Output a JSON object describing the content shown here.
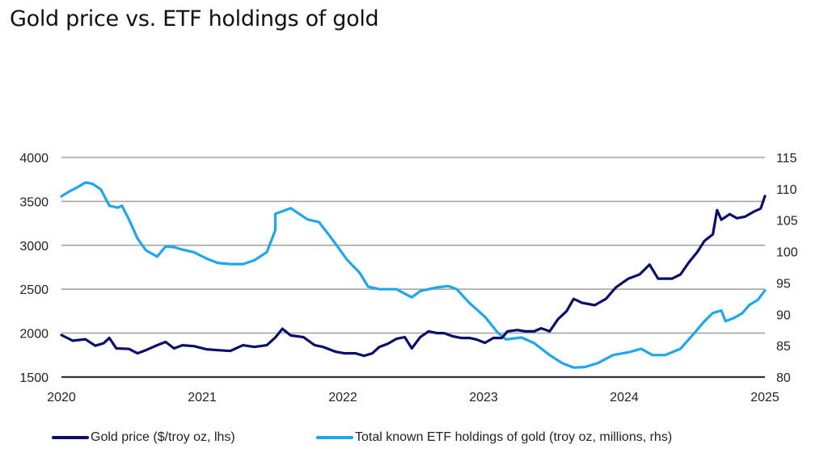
{
  "chart_data": {
    "type": "line",
    "title": "Gold price vs. ETF holdings of gold",
    "xlabel": "",
    "x_ticks": [
      "2020",
      "2021",
      "2022",
      "2023",
      "2024",
      "2025"
    ],
    "xlim": [
      2020,
      2025
    ],
    "y_left": {
      "label": "Gold price ($/troy oz, lhs)",
      "ylim": [
        1500,
        4000
      ],
      "ticks": [
        "4000",
        "3500",
        "3000",
        "2500",
        "2000",
        "1500"
      ]
    },
    "y_right": {
      "label": "Total known ETF holdings of gold (troy oz, millions, rhs)",
      "ylim": [
        80,
        115
      ],
      "ticks": [
        "115",
        "110",
        "105",
        "100",
        "95",
        "90",
        "85",
        "80"
      ]
    },
    "grid": true,
    "legend_position": "bottom",
    "series": [
      {
        "name": "Gold price ($/troy oz, lhs)",
        "axis": "left",
        "color": "#0b0f6b",
        "x": [
          2020.0,
          2020.08,
          2020.17,
          2020.24,
          2020.3,
          2020.34,
          2020.39,
          2020.48,
          2020.54,
          2020.6,
          2020.68,
          2020.74,
          2020.8,
          2020.86,
          2020.94,
          2021.03,
          2021.11,
          2021.2,
          2021.29,
          2021.37,
          2021.46,
          2021.52,
          2021.57,
          2021.63,
          2021.72,
          2021.8,
          2021.86,
          2021.95,
          2022.01,
          2022.09,
          2022.15,
          2022.21,
          2022.26,
          2022.32,
          2022.38,
          2022.44,
          2022.49,
          2022.55,
          2022.61,
          2022.67,
          2022.72,
          2022.78,
          2022.84,
          2022.9,
          2022.95,
          2023.01,
          2023.07,
          2023.13,
          2023.17,
          2023.24,
          2023.3,
          2023.36,
          2023.41,
          2023.47,
          2023.53,
          2023.59,
          2023.64,
          2023.7,
          2023.79,
          2023.87,
          2023.94,
          2024.03,
          2024.11,
          2024.18,
          2024.24,
          2024.29,
          2024.34,
          2024.4,
          2024.46,
          2024.52,
          2024.57,
          2024.63,
          2024.66,
          2024.69,
          2024.75,
          2024.8,
          2024.86,
          2024.92,
          2024.97,
          2025.0
        ],
        "values": [
          1978,
          1914,
          1930,
          1857,
          1885,
          1945,
          1826,
          1820,
          1770,
          1806,
          1862,
          1900,
          1826,
          1862,
          1852,
          1816,
          1806,
          1797,
          1862,
          1843,
          1862,
          1950,
          2050,
          1973,
          1954,
          1862,
          1843,
          1788,
          1770,
          1770,
          1742,
          1770,
          1843,
          1880,
          1935,
          1954,
          1826,
          1954,
          2020,
          2000,
          2000,
          1964,
          1945,
          1945,
          1927,
          1890,
          1945,
          1945,
          2020,
          2035,
          2020,
          2020,
          2055,
          2020,
          2160,
          2250,
          2390,
          2345,
          2318,
          2390,
          2520,
          2620,
          2668,
          2780,
          2620,
          2620,
          2620,
          2668,
          2806,
          2925,
          3050,
          3125,
          3400,
          3290,
          3355,
          3308,
          3326,
          3382,
          3418,
          3560
        ]
      },
      {
        "name": "Total known ETF holdings of gold (troy oz, millions, rhs)",
        "axis": "right",
        "color": "#1ea7ec",
        "x": [
          2020.0,
          2020.05,
          2020.11,
          2020.17,
          2020.22,
          2020.28,
          2020.34,
          2020.4,
          2020.43,
          2020.48,
          2020.54,
          2020.6,
          2020.68,
          2020.74,
          2020.8,
          2020.86,
          2020.94,
          2021.03,
          2021.11,
          2021.2,
          2021.29,
          2021.37,
          2021.46,
          2021.52,
          2021.52,
          2021.63,
          2021.69,
          2021.75,
          2021.83,
          2021.92,
          2022.03,
          2022.12,
          2022.18,
          2022.26,
          2022.38,
          2022.49,
          2022.55,
          2022.67,
          2022.75,
          2022.81,
          2022.9,
          2023.01,
          2023.1,
          2023.16,
          2023.27,
          2023.36,
          2023.47,
          2023.56,
          2023.64,
          2023.72,
          2023.81,
          2023.92,
          2024.04,
          2024.12,
          2024.2,
          2024.29,
          2024.4,
          2024.51,
          2024.57,
          2024.63,
          2024.69,
          2024.72,
          2024.78,
          2024.84,
          2024.89,
          2024.95,
          2025.0
        ],
        "values": [
          108.8,
          109.5,
          110.2,
          111.0,
          110.8,
          109.9,
          107.3,
          107.0,
          107.3,
          105.1,
          102.1,
          100.2,
          99.2,
          100.8,
          100.7,
          100.3,
          99.9,
          98.9,
          98.2,
          98.0,
          98.0,
          98.6,
          99.9,
          103.4,
          106.0,
          106.9,
          106.0,
          105.1,
          104.7,
          102.1,
          98.7,
          96.6,
          94.4,
          94.0,
          94.0,
          92.7,
          93.7,
          94.3,
          94.5,
          94.0,
          91.8,
          89.6,
          87.1,
          86.0,
          86.3,
          85.4,
          83.5,
          82.2,
          81.5,
          81.6,
          82.2,
          83.5,
          84.0,
          84.5,
          83.5,
          83.5,
          84.5,
          87.3,
          88.9,
          90.2,
          90.6,
          88.9,
          89.4,
          90.2,
          91.5,
          92.3,
          93.8
        ]
      }
    ]
  }
}
